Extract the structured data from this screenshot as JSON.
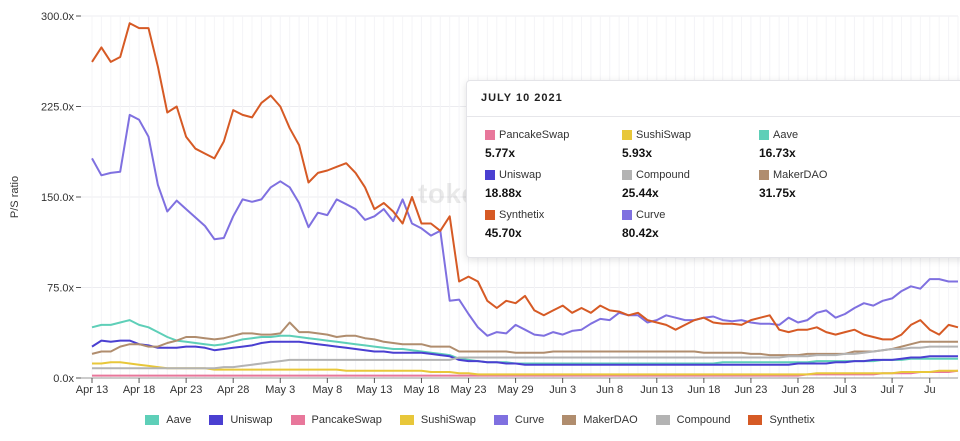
{
  "chart_data": {
    "type": "line",
    "ylabel": "P/S ratio",
    "ylim": [
      0,
      300
    ],
    "y_ticks": [
      "0.0x",
      "75.0x",
      "150.0x",
      "225.0x",
      "300.0x"
    ],
    "x_ticks": [
      "Apr 13",
      "Apr 18",
      "Apr 23",
      "Apr 28",
      "May 3",
      "May 8",
      "May 13",
      "May 18",
      "May 23",
      "May 29",
      "Jun 3",
      "Jun 8",
      "Jun 13",
      "Jun 18",
      "Jun 23",
      "Jun 28",
      "Jul 3",
      "Jul 7",
      "Ju"
    ],
    "legend_position": "bottom",
    "watermark": "token terminal_",
    "series": [
      {
        "name": "Aave",
        "color": "#5ecfb8",
        "values": [
          42,
          44,
          44,
          46,
          48,
          44,
          42,
          38,
          34,
          31,
          30,
          29,
          28,
          27,
          28,
          30,
          32,
          33,
          34,
          34,
          35,
          35,
          34,
          33,
          32,
          31,
          30,
          29,
          28,
          27,
          26,
          25,
          24,
          24,
          23,
          22,
          21,
          20,
          19,
          16,
          15,
          14,
          13,
          13,
          13,
          12,
          12,
          12,
          12,
          12,
          12,
          12,
          12,
          12,
          12,
          12,
          12,
          12,
          12,
          12,
          12,
          12,
          12,
          12,
          12,
          12,
          12,
          13,
          13,
          13,
          13,
          13,
          13,
          13,
          13,
          13,
          13,
          14,
          14,
          14,
          14,
          14,
          14,
          14,
          15,
          15,
          15,
          16,
          16,
          16,
          16,
          16,
          16
        ]
      },
      {
        "name": "Uniswap",
        "color": "#4a3fd1",
        "values": [
          26,
          31,
          30,
          31,
          31,
          28,
          27,
          25,
          25,
          25,
          26,
          26,
          25,
          23,
          24,
          25,
          26,
          27,
          29,
          30,
          30,
          30,
          30,
          29,
          28,
          27,
          26,
          25,
          24,
          23,
          22,
          22,
          21,
          21,
          21,
          21,
          20,
          19,
          18,
          15,
          14,
          14,
          13,
          13,
          12,
          12,
          11,
          11,
          11,
          11,
          11,
          11,
          11,
          11,
          11,
          11,
          11,
          11,
          11,
          11,
          11,
          11,
          11,
          11,
          11,
          11,
          11,
          11,
          11,
          11,
          11,
          11,
          11,
          11,
          11,
          12,
          12,
          12,
          12,
          13,
          13,
          14,
          14,
          15,
          15,
          15,
          16,
          17,
          17,
          18,
          18,
          18,
          18
        ]
      },
      {
        "name": "PancakeSwap",
        "color": "#e8779b",
        "values": [
          2,
          2,
          2,
          2,
          2,
          2,
          2,
          2,
          2,
          2,
          2,
          2,
          2,
          2,
          2,
          2,
          2,
          2,
          2,
          2,
          2,
          2,
          2,
          2,
          2,
          2,
          2,
          2,
          2,
          2,
          2,
          2,
          2,
          2,
          2,
          2,
          2,
          2,
          2,
          2,
          2,
          2,
          2,
          2,
          2,
          2,
          2,
          2,
          2,
          2,
          2,
          2,
          2,
          2,
          2,
          2,
          2,
          2,
          2,
          2,
          2,
          2,
          2,
          2,
          2,
          2,
          2,
          2,
          2,
          2,
          2,
          2,
          2,
          2,
          2,
          2,
          3,
          3,
          3,
          3,
          3,
          3,
          3,
          3,
          4,
          4,
          4,
          4,
          5,
          5,
          5,
          5,
          6
        ]
      },
      {
        "name": "SushiSwap",
        "color": "#e8c73a",
        "values": [
          12,
          12,
          13,
          13,
          12,
          11,
          10,
          9,
          8,
          8,
          8,
          8,
          8,
          7,
          7,
          7,
          7,
          7,
          7,
          7,
          7,
          7,
          7,
          7,
          7,
          7,
          7,
          6,
          6,
          6,
          6,
          6,
          6,
          6,
          6,
          6,
          5,
          5,
          5,
          4,
          4,
          3,
          3,
          3,
          3,
          3,
          3,
          3,
          3,
          3,
          3,
          3,
          3,
          3,
          3,
          3,
          3,
          3,
          3,
          3,
          3,
          3,
          3,
          3,
          3,
          3,
          3,
          3,
          3,
          3,
          3,
          3,
          3,
          3,
          3,
          3,
          3,
          4,
          4,
          4,
          4,
          4,
          4,
          4,
          4,
          4,
          5,
          5,
          5,
          5,
          6,
          6,
          6
        ]
      },
      {
        "name": "Curve",
        "color": "#7f70e0",
        "values": [
          182,
          168,
          170,
          171,
          218,
          214,
          200,
          160,
          138,
          147,
          140,
          133,
          126,
          115,
          116,
          134,
          148,
          146,
          148,
          158,
          163,
          158,
          145,
          125,
          137,
          135,
          148,
          144,
          140,
          131,
          134,
          140,
          130,
          148,
          128,
          124,
          118,
          122,
          64,
          65,
          53,
          42,
          35,
          38,
          37,
          44,
          40,
          36,
          35,
          38,
          36,
          39,
          40,
          45,
          49,
          48,
          54,
          52,
          52,
          46,
          48,
          52,
          50,
          48,
          48,
          50,
          51,
          48,
          47,
          48,
          46,
          45,
          45,
          44,
          50,
          46,
          48,
          54,
          56,
          50,
          53,
          58,
          62,
          60,
          64,
          66,
          72,
          76,
          74,
          82,
          82,
          80,
          80
        ]
      },
      {
        "name": "MakerDAO",
        "color": "#b08d6e",
        "values": [
          20,
          22,
          22,
          26,
          28,
          28,
          26,
          26,
          29,
          31,
          34,
          34,
          33,
          32,
          33,
          35,
          37,
          37,
          36,
          36,
          37,
          46,
          38,
          38,
          37,
          36,
          34,
          35,
          35,
          33,
          32,
          30,
          29,
          28,
          28,
          28,
          26,
          26,
          26,
          22,
          22,
          22,
          22,
          22,
          22,
          21,
          21,
          21,
          21,
          22,
          22,
          22,
          22,
          22,
          22,
          22,
          22,
          22,
          22,
          22,
          22,
          22,
          22,
          22,
          22,
          21,
          21,
          21,
          21,
          21,
          20,
          20,
          19,
          19,
          19,
          19,
          20,
          20,
          20,
          20,
          20,
          22,
          22,
          22,
          23,
          24,
          26,
          28,
          30,
          30,
          30,
          30,
          30
        ]
      },
      {
        "name": "Compound",
        "color": "#b3b3b3",
        "values": [
          8,
          8,
          8,
          8,
          8,
          8,
          8,
          8,
          8,
          8,
          8,
          8,
          8,
          8,
          9,
          9,
          10,
          11,
          12,
          13,
          14,
          15,
          15,
          15,
          15,
          15,
          15,
          15,
          15,
          15,
          15,
          15,
          15,
          15,
          15,
          15,
          15,
          15,
          15,
          17,
          17,
          17,
          17,
          17,
          17,
          17,
          17,
          17,
          17,
          17,
          17,
          17,
          17,
          17,
          17,
          17,
          17,
          17,
          17,
          17,
          17,
          17,
          17,
          17,
          17,
          17,
          17,
          17,
          17,
          17,
          17,
          17,
          17,
          17,
          18,
          18,
          18,
          19,
          19,
          19,
          20,
          20,
          21,
          22,
          23,
          24,
          24,
          25,
          25,
          26,
          26,
          26,
          26
        ]
      },
      {
        "name": "Synthetix",
        "color": "#d65a25",
        "values": [
          262,
          274,
          262,
          266,
          294,
          290,
          290,
          258,
          220,
          225,
          200,
          190,
          186,
          182,
          196,
          222,
          218,
          216,
          228,
          234,
          225,
          207,
          193,
          162,
          170,
          172,
          175,
          178,
          170,
          158,
          140,
          145,
          138,
          128,
          150,
          128,
          128,
          122,
          134,
          80,
          84,
          80,
          64,
          58,
          64,
          62,
          68,
          56,
          52,
          56,
          60,
          54,
          58,
          54,
          60,
          56,
          55,
          52,
          54,
          48,
          46,
          44,
          40,
          44,
          48,
          50,
          46,
          45,
          45,
          44,
          48,
          50,
          52,
          40,
          38,
          40,
          40,
          42,
          38,
          36,
          38,
          40,
          36,
          34,
          32,
          32,
          36,
          44,
          48,
          40,
          36,
          44,
          42
        ]
      }
    ],
    "tooltip": {
      "date": "JULY 10 2021",
      "items": [
        {
          "name": "PancakeSwap",
          "value": "5.77x",
          "color": "#e8779b"
        },
        {
          "name": "SushiSwap",
          "value": "5.93x",
          "color": "#e8c73a"
        },
        {
          "name": "Aave",
          "value": "16.73x",
          "color": "#5ecfb8"
        },
        {
          "name": "Uniswap",
          "value": "18.88x",
          "color": "#4a3fd1"
        },
        {
          "name": "Compound",
          "value": "25.44x",
          "color": "#b3b3b3"
        },
        {
          "name": "MakerDAO",
          "value": "31.75x",
          "color": "#b08d6e"
        },
        {
          "name": "Synthetix",
          "value": "45.70x",
          "color": "#d65a25"
        },
        {
          "name": "Curve",
          "value": "80.42x",
          "color": "#7f70e0"
        }
      ]
    }
  }
}
